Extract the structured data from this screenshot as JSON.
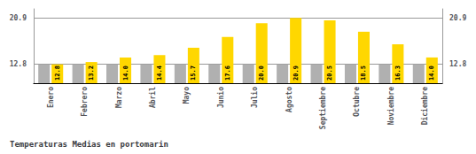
{
  "chart_data": {
    "type": "bar",
    "title": "Temperaturas Medias en portomarin",
    "categories": [
      "Enero",
      "Febrero",
      "Marzo",
      "Abril",
      "Mayo",
      "Junio",
      "Julio",
      "Agosto",
      "Septiembre",
      "Octubre",
      "Noviembre",
      "Diciembre"
    ],
    "series": [
      {
        "color": "#B0B0B0",
        "values": [
          12.8,
          12.8,
          12.8,
          12.8,
          12.8,
          12.8,
          12.8,
          12.8,
          12.8,
          12.8,
          12.8,
          12.8
        ]
      },
      {
        "color": "#FFD700",
        "values": [
          12.8,
          13.2,
          14.0,
          14.4,
          15.7,
          17.6,
          20.0,
          20.9,
          20.5,
          18.5,
          16.3,
          14.0
        ],
        "value_labels": [
          "12.8",
          "13.2",
          "14.0",
          "14.4",
          "15.7",
          "17.6",
          "20.0",
          "20.9",
          "20.5",
          "18.5",
          "16.3",
          "14.0"
        ],
        "data_labels": true
      }
    ],
    "ylim": [
      9.5,
      22.5
    ],
    "yticks": [
      12.8,
      20.9
    ],
    "y2lim": [
      9.5,
      22.5
    ],
    "y2ticks": [
      12.8,
      20.9
    ],
    "grid": true
  }
}
